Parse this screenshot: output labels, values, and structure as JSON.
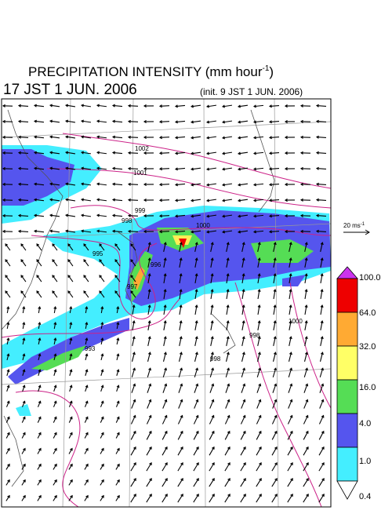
{
  "header": {
    "title": "PRECIPITATION INTENSITY (mm hour",
    "title_exponent": "-1",
    "title_close": ")",
    "valid_time": "17 JST 1 JUN. 2006",
    "init_time": "(init. 9 JST 1 JUN. 2006)"
  },
  "vector_legend": {
    "label": "20 ms",
    "exponent": "-1"
  },
  "colorbar": {
    "labels": [
      "100.0",
      "64.0",
      "32.0",
      "16.0",
      "4.0",
      "1.0",
      "0.4"
    ]
  },
  "contours": {
    "labels": [
      "1002",
      "1001",
      "999",
      "998",
      "1000",
      "995",
      "996",
      "993",
      "997",
      "998",
      "1000",
      "998"
    ]
  }
}
